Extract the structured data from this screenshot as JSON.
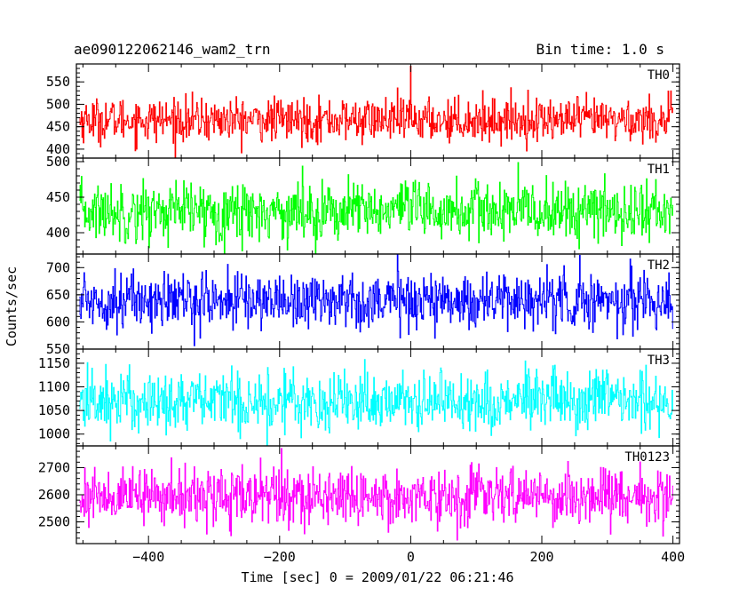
{
  "header": {
    "left_title": "ae090122062146_wam2_trn",
    "right_title": "Bin time: 1.0 s"
  },
  "axes": {
    "xlabel": "Time [sec] 0 = 2009/01/22 06:21:46",
    "ylabel": "Counts/sec"
  },
  "chart_data": {
    "type": "line",
    "xlim": [
      -510,
      410
    ],
    "x_ticks": [
      -400,
      -200,
      0,
      200,
      400
    ],
    "x_tick_labels": [
      "−400",
      "−200",
      "0",
      "200",
      "400"
    ],
    "x_step": 1,
    "x_start": -505,
    "x_end": 400,
    "grid": false,
    "panels": [
      {
        "label": "TH0",
        "color": "#ff0000",
        "ylim": [
          380,
          590
        ],
        "y_ticks": [
          400,
          450,
          500,
          550
        ],
        "mean": 465,
        "spread": 24,
        "spike": {
          "x": 0,
          "value": 585
        }
      },
      {
        "label": "TH1",
        "color": "#00ff00",
        "ylim": [
          370,
          505
        ],
        "y_ticks": [
          400,
          450,
          500
        ],
        "mean": 430,
        "spread": 21
      },
      {
        "label": "TH2",
        "color": "#0000ff",
        "ylim": [
          550,
          725
        ],
        "y_ticks": [
          550,
          600,
          650,
          700
        ],
        "mean": 640,
        "spread": 26
      },
      {
        "label": "TH3",
        "color": "#00ffff",
        "ylim": [
          975,
          1180
        ],
        "y_ticks": [
          1000,
          1050,
          1100,
          1150
        ],
        "mean": 1070,
        "spread": 33
      },
      {
        "label": "TH0123",
        "color": "#ff00ff",
        "ylim": [
          2420,
          2780
        ],
        "y_ticks": [
          2500,
          2600,
          2700
        ],
        "mean": 2595,
        "spread": 52
      }
    ]
  }
}
